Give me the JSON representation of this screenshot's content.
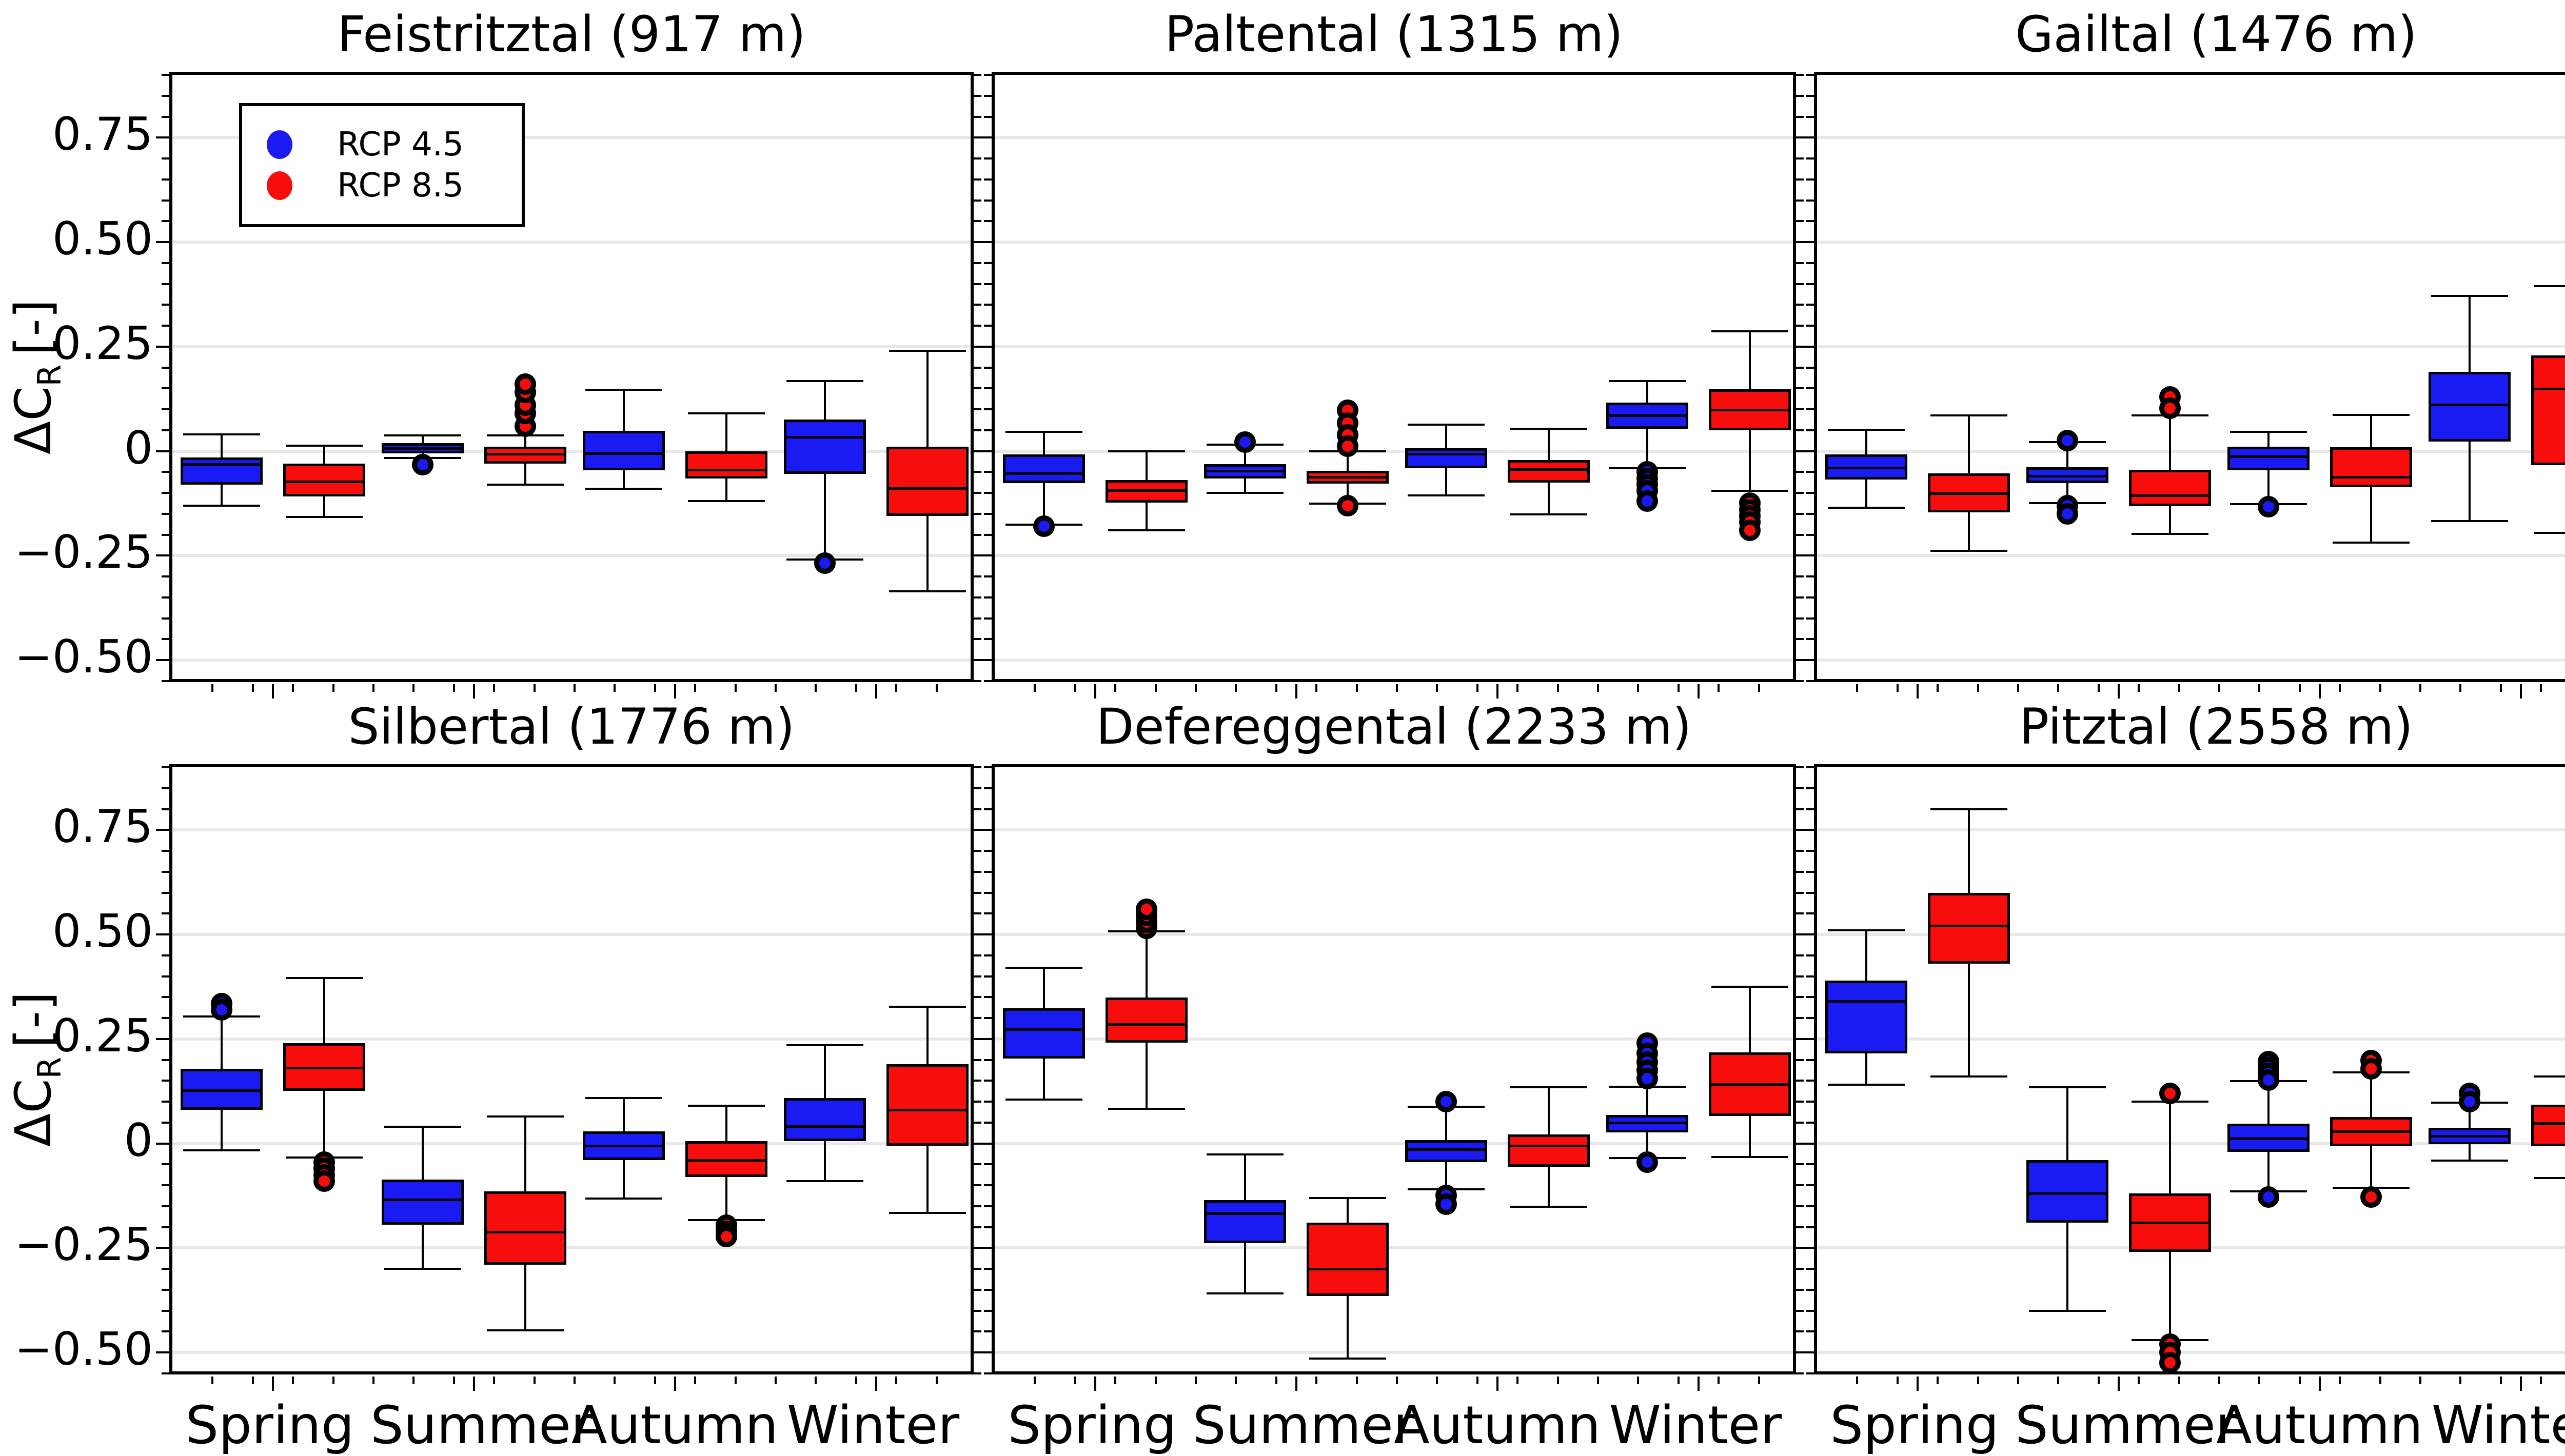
{
  "chart_data": {
    "type": "boxplot",
    "layout": "2 rows x 3 columns of panels, shared axes",
    "ylabel": {
      "main": "ΔC",
      "sub": "R",
      "unit": "[-]"
    },
    "ylim": [
      -0.56,
      0.9
    ],
    "grid": "horizontal major gridlines only",
    "yticks": {
      "values": [
        0.75,
        0.5,
        0.25,
        0,
        -0.25,
        -0.5
      ],
      "labels": [
        "0.75",
        "0.50",
        "0.25",
        "0",
        "−0.25",
        "−0.50"
      ],
      "minor_step": 0.05
    },
    "categories": [
      "Spring",
      "Summer",
      "Autumn",
      "Winter"
    ],
    "legend": {
      "position": "top-left of first panel",
      "items": [
        {
          "label": "RCP 4.5",
          "color": "#1a1af2"
        },
        {
          "label": "RCP 8.5",
          "color": "#f80d0d"
        }
      ]
    },
    "panels": [
      {
        "title": "Feistritztal (917 m)",
        "row": 0,
        "col": 0,
        "boxes": [
          {
            "season": "Spring",
            "scenario": "RCP 4.5",
            "whislo": -0.13,
            "q1": -0.08,
            "med": -0.032,
            "q3": -0.015,
            "whishi": 0.04,
            "outliers": []
          },
          {
            "season": "Spring",
            "scenario": "RCP 8.5",
            "whislo": -0.158,
            "q1": -0.108,
            "med": -0.073,
            "q3": -0.03,
            "whishi": 0.013,
            "outliers": []
          },
          {
            "season": "Summer",
            "scenario": "RCP 4.5",
            "whislo": -0.016,
            "q1": -0.006,
            "med": 0.006,
            "q3": 0.019,
            "whishi": 0.038,
            "outliers": [
              -0.032
            ]
          },
          {
            "season": "Summer",
            "scenario": "RCP 8.5",
            "whislo": -0.08,
            "q1": -0.03,
            "med": -0.007,
            "q3": 0.011,
            "whishi": 0.038,
            "outliers": [
              0.06,
              0.09,
              0.11,
              0.14,
              0.16
            ]
          },
          {
            "season": "Autumn",
            "scenario": "RCP 4.5",
            "whislo": -0.09,
            "q1": -0.046,
            "med": -0.006,
            "q3": 0.049,
            "whishi": 0.147,
            "outliers": []
          },
          {
            "season": "Autumn",
            "scenario": "RCP 8.5",
            "whislo": -0.12,
            "q1": -0.065,
            "med": -0.045,
            "q3": 0.0,
            "whishi": 0.09,
            "outliers": []
          },
          {
            "season": "Winter",
            "scenario": "RCP 4.5",
            "whislo": -0.26,
            "q1": -0.055,
            "med": 0.033,
            "q3": 0.076,
            "whishi": 0.167,
            "outliers": [
              -0.268
            ]
          },
          {
            "season": "Winter",
            "scenario": "RCP 8.5",
            "whislo": -0.335,
            "q1": -0.155,
            "med": -0.09,
            "q3": 0.01,
            "whishi": 0.24,
            "outliers": []
          }
        ]
      },
      {
        "title": "Paltental (1315 m)",
        "row": 0,
        "col": 1,
        "boxes": [
          {
            "season": "Spring",
            "scenario": "RCP 4.5",
            "whislo": -0.176,
            "q1": -0.076,
            "med": -0.054,
            "q3": -0.008,
            "whishi": 0.046,
            "outliers": [
              -0.18
            ]
          },
          {
            "season": "Spring",
            "scenario": "RCP 8.5",
            "whislo": -0.19,
            "q1": -0.123,
            "med": -0.095,
            "q3": -0.069,
            "whishi": 0.0,
            "outliers": []
          },
          {
            "season": "Summer",
            "scenario": "RCP 4.5",
            "whislo": -0.1,
            "q1": -0.065,
            "med": -0.048,
            "q3": -0.031,
            "whishi": 0.016,
            "outliers": [
              0.022
            ]
          },
          {
            "season": "Summer",
            "scenario": "RCP 8.5",
            "whislo": -0.126,
            "q1": -0.078,
            "med": -0.063,
            "q3": -0.047,
            "whishi": 0.0,
            "outliers": [
              0.098,
              0.067,
              0.039,
              0.012,
              -0.13
            ]
          },
          {
            "season": "Autumn",
            "scenario": "RCP 4.5",
            "whislo": -0.106,
            "q1": -0.041,
            "med": -0.007,
            "q3": 0.007,
            "whishi": 0.063,
            "outliers": []
          },
          {
            "season": "Autumn",
            "scenario": "RCP 8.5",
            "whislo": -0.152,
            "q1": -0.075,
            "med": -0.044,
            "q3": -0.022,
            "whishi": 0.054,
            "outliers": []
          },
          {
            "season": "Winter",
            "scenario": "RCP 4.5",
            "whislo": -0.041,
            "q1": 0.054,
            "med": 0.085,
            "q3": 0.116,
            "whishi": 0.168,
            "outliers": [
              -0.05,
              -0.065,
              -0.08,
              -0.095,
              -0.12
            ]
          },
          {
            "season": "Winter",
            "scenario": "RCP 8.5",
            "whislo": -0.095,
            "q1": 0.05,
            "med": 0.098,
            "q3": 0.148,
            "whishi": 0.286,
            "outliers": [
              -0.125,
              -0.14,
              -0.155,
              -0.17,
              -0.19
            ]
          }
        ]
      },
      {
        "title": "Gailtal (1476 m)",
        "row": 0,
        "col": 2,
        "boxes": [
          {
            "season": "Spring",
            "scenario": "RCP 4.5",
            "whislo": -0.136,
            "q1": -0.068,
            "med": -0.04,
            "q3": -0.008,
            "whishi": 0.051,
            "outliers": []
          },
          {
            "season": "Spring",
            "scenario": "RCP 8.5",
            "whislo": -0.238,
            "q1": -0.147,
            "med": -0.102,
            "q3": -0.053,
            "whishi": 0.085,
            "outliers": []
          },
          {
            "season": "Summer",
            "scenario": "RCP 4.5",
            "whislo": -0.125,
            "q1": -0.076,
            "med": -0.06,
            "q3": -0.038,
            "whishi": 0.021,
            "outliers": [
              0.025,
              -0.13,
              -0.15
            ]
          },
          {
            "season": "Summer",
            "scenario": "RCP 8.5",
            "whislo": -0.198,
            "q1": -0.132,
            "med": -0.107,
            "q3": -0.045,
            "whishi": 0.085,
            "outliers": [
              0.13,
              0.103
            ]
          },
          {
            "season": "Autumn",
            "scenario": "RCP 4.5",
            "whislo": -0.127,
            "q1": -0.046,
            "med": -0.014,
            "q3": 0.01,
            "whishi": 0.046,
            "outliers": [
              -0.133
            ]
          },
          {
            "season": "Autumn",
            "scenario": "RCP 8.5",
            "whislo": -0.219,
            "q1": -0.086,
            "med": -0.062,
            "q3": 0.009,
            "whishi": 0.087,
            "outliers": []
          },
          {
            "season": "Winter",
            "scenario": "RCP 4.5",
            "whislo": -0.168,
            "q1": 0.023,
            "med": 0.11,
            "q3": 0.19,
            "whishi": 0.371,
            "outliers": []
          },
          {
            "season": "Winter",
            "scenario": "RCP 8.5",
            "whislo": -0.196,
            "q1": -0.034,
            "med": 0.148,
            "q3": 0.229,
            "whishi": 0.395,
            "outliers": []
          }
        ]
      },
      {
        "title": "Silbertal (1776 m)",
        "row": 1,
        "col": 0,
        "boxes": [
          {
            "season": "Spring",
            "scenario": "RCP 4.5",
            "whislo": -0.017,
            "q1": 0.08,
            "med": 0.126,
            "q3": 0.178,
            "whishi": 0.304,
            "outliers": [
              0.335,
              0.32
            ]
          },
          {
            "season": "Spring",
            "scenario": "RCP 8.5",
            "whislo": -0.034,
            "q1": 0.126,
            "med": 0.18,
            "q3": 0.24,
            "whishi": 0.396,
            "outliers": [
              -0.045,
              -0.06,
              -0.075,
              -0.09
            ]
          },
          {
            "season": "Summer",
            "scenario": "RCP 4.5",
            "whislo": -0.3,
            "q1": -0.195,
            "med": -0.135,
            "q3": -0.086,
            "whishi": 0.04,
            "outliers": []
          },
          {
            "season": "Summer",
            "scenario": "RCP 8.5",
            "whislo": -0.447,
            "q1": -0.29,
            "med": -0.212,
            "q3": -0.115,
            "whishi": 0.065,
            "outliers": []
          },
          {
            "season": "Autumn",
            "scenario": "RCP 4.5",
            "whislo": -0.132,
            "q1": -0.04,
            "med": -0.006,
            "q3": 0.029,
            "whishi": 0.109,
            "outliers": []
          },
          {
            "season": "Autumn",
            "scenario": "RCP 8.5",
            "whislo": -0.183,
            "q1": -0.08,
            "med": -0.04,
            "q3": 0.006,
            "whishi": 0.09,
            "outliers": [
              -0.196,
              -0.21,
              -0.223
            ]
          },
          {
            "season": "Winter",
            "scenario": "RCP 4.5",
            "whislo": -0.09,
            "q1": 0.006,
            "med": 0.04,
            "q3": 0.109,
            "whishi": 0.235,
            "outliers": []
          },
          {
            "season": "Winter",
            "scenario": "RCP 8.5",
            "whislo": -0.166,
            "q1": -0.006,
            "med": 0.08,
            "q3": 0.19,
            "whishi": 0.327,
            "outliers": []
          }
        ]
      },
      {
        "title": "Defereggental (2233 m)",
        "row": 1,
        "col": 1,
        "boxes": [
          {
            "season": "Spring",
            "scenario": "RCP 4.5",
            "whislo": 0.105,
            "q1": 0.203,
            "med": 0.272,
            "q3": 0.323,
            "whishi": 0.42,
            "outliers": []
          },
          {
            "season": "Spring",
            "scenario": "RCP 8.5",
            "whislo": 0.083,
            "q1": 0.241,
            "med": 0.285,
            "q3": 0.349,
            "whishi": 0.507,
            "outliers": [
              0.515,
              0.53,
              0.545,
              0.56
            ]
          },
          {
            "season": "Summer",
            "scenario": "RCP 4.5",
            "whislo": -0.359,
            "q1": -0.238,
            "med": -0.168,
            "q3": -0.135,
            "whishi": -0.026,
            "outliers": []
          },
          {
            "season": "Summer",
            "scenario": "RCP 8.5",
            "whislo": -0.514,
            "q1": -0.365,
            "med": -0.3,
            "q3": -0.19,
            "whishi": -0.13,
            "outliers": []
          },
          {
            "season": "Autumn",
            "scenario": "RCP 4.5",
            "whislo": -0.11,
            "q1": -0.045,
            "med": -0.015,
            "q3": 0.008,
            "whishi": 0.088,
            "outliers": [
              0.1,
              -0.125,
              -0.145
            ]
          },
          {
            "season": "Autumn",
            "scenario": "RCP 8.5",
            "whislo": -0.151,
            "q1": -0.056,
            "med": -0.006,
            "q3": 0.021,
            "whishi": 0.134,
            "outliers": []
          },
          {
            "season": "Winter",
            "scenario": "RCP 4.5",
            "whislo": -0.035,
            "q1": 0.027,
            "med": 0.049,
            "q3": 0.068,
            "whishi": 0.136,
            "outliers": [
              0.24,
              0.215,
              0.195,
              0.175,
              0.155,
              -0.045
            ]
          },
          {
            "season": "Winter",
            "scenario": "RCP 8.5",
            "whislo": -0.033,
            "q1": 0.066,
            "med": 0.141,
            "q3": 0.218,
            "whishi": 0.375,
            "outliers": []
          }
        ]
      },
      {
        "title": "Pitztal (2558 m)",
        "row": 1,
        "col": 2,
        "boxes": [
          {
            "season": "Spring",
            "scenario": "RCP 4.5",
            "whislo": 0.14,
            "q1": 0.215,
            "med": 0.34,
            "q3": 0.39,
            "whishi": 0.51,
            "outliers": []
          },
          {
            "season": "Spring",
            "scenario": "RCP 8.5",
            "whislo": 0.16,
            "q1": 0.43,
            "med": 0.52,
            "q3": 0.6,
            "whishi": 0.8,
            "outliers": []
          },
          {
            "season": "Summer",
            "scenario": "RCP 4.5",
            "whislo": -0.4,
            "q1": -0.19,
            "med": -0.12,
            "q3": -0.04,
            "whishi": 0.135,
            "outliers": []
          },
          {
            "season": "Summer",
            "scenario": "RCP 8.5",
            "whislo": -0.47,
            "q1": -0.26,
            "med": -0.19,
            "q3": -0.12,
            "whishi": 0.1,
            "outliers": [
              0.12,
              -0.48,
              -0.5,
              -0.525
            ]
          },
          {
            "season": "Autumn",
            "scenario": "RCP 4.5",
            "whislo": -0.115,
            "q1": -0.02,
            "med": 0.011,
            "q3": 0.047,
            "whishi": 0.149,
            "outliers": [
              0.196,
              0.182,
              0.167,
              0.152,
              -0.128
            ]
          },
          {
            "season": "Autumn",
            "scenario": "RCP 8.5",
            "whislo": -0.106,
            "q1": -0.007,
            "med": 0.028,
            "q3": 0.063,
            "whishi": 0.17,
            "outliers": [
              0.198,
              0.178,
              -0.128
            ]
          },
          {
            "season": "Winter",
            "scenario": "RCP 4.5",
            "whislo": -0.041,
            "q1": -0.002,
            "med": 0.017,
            "q3": 0.037,
            "whishi": 0.098,
            "outliers": [
              0.12,
              0.1
            ]
          },
          {
            "season": "Winter",
            "scenario": "RCP 8.5",
            "whislo": -0.083,
            "q1": -0.007,
            "med": 0.048,
            "q3": 0.093,
            "whishi": 0.16,
            "outliers": []
          }
        ]
      }
    ]
  }
}
